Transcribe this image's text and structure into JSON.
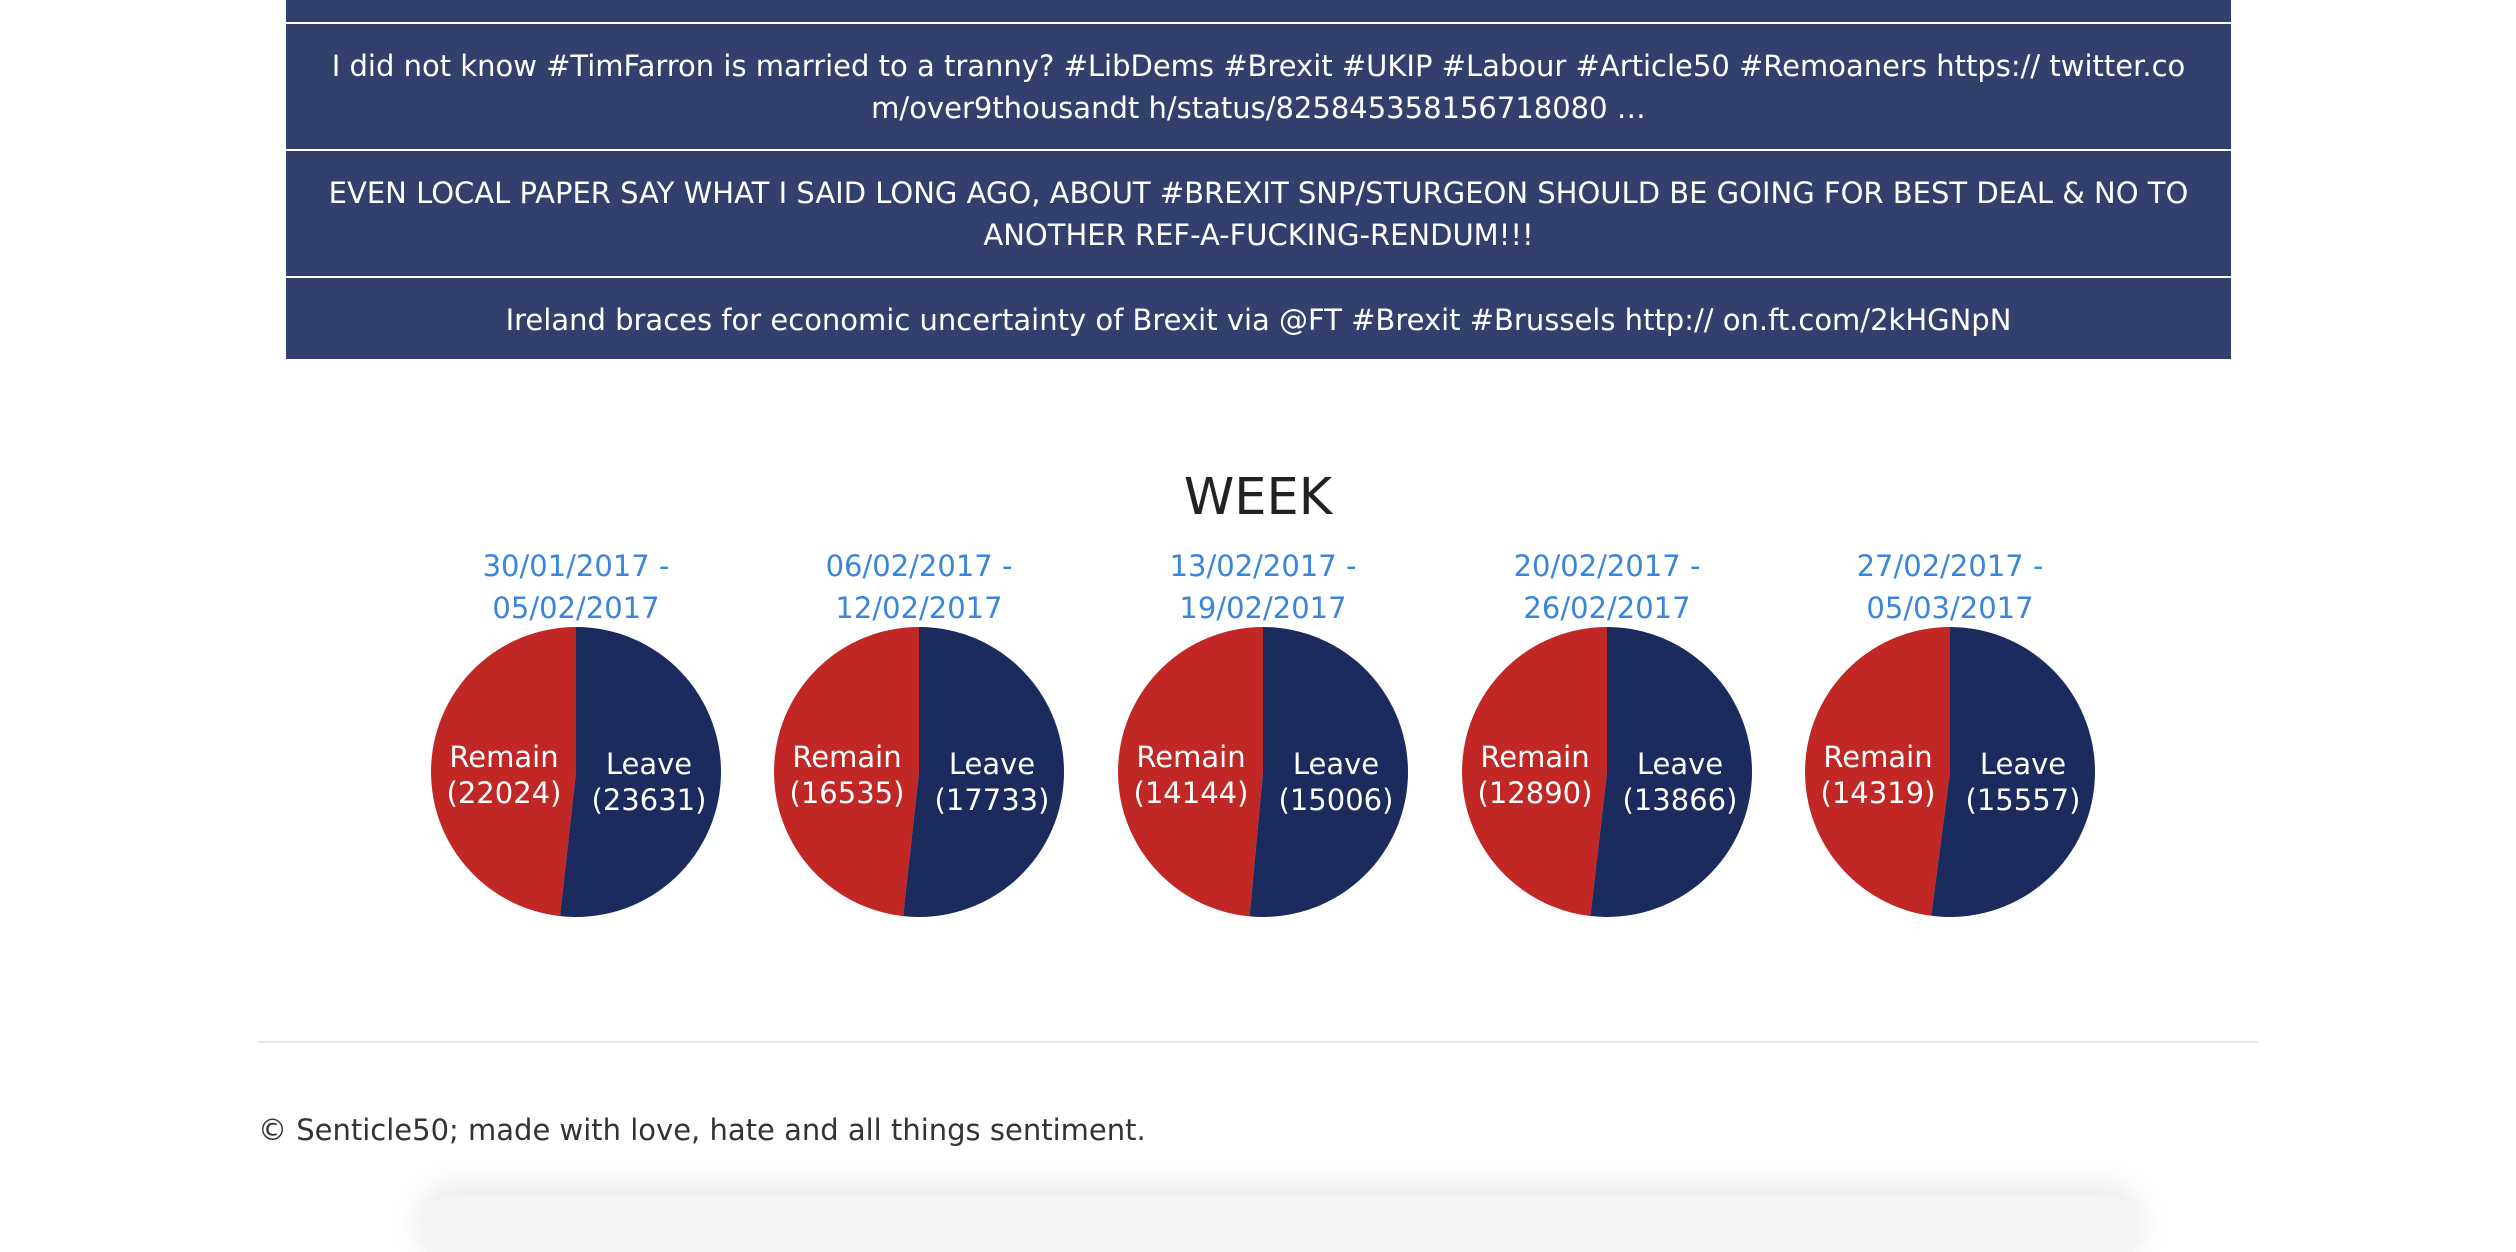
{
  "tweets": [
    {
      "text": "I did not know #TimFarron is married to a tranny? #LibDems #Brexit #UKIP #Labour #Article50 #Remoaners https:// twitter.com/over9thousandt h/status/825845358156718080 …"
    },
    {
      "text": "EVEN LOCAL PAPER SAY WHAT I SAID LONG AGO, ABOUT #BREXIT SNP/STURGEON SHOULD BE GOING FOR BEST DEAL & NO TO ANOTHER REF-A-FUCKING-RENDUM!!!"
    },
    {
      "text": "Ireland braces for economic uncertainty of Brexit via @FT #Brexit #Brussels http:// on.ft.com/2kHGNpN"
    }
  ],
  "section_title": "WEEK",
  "colors": {
    "remain": "#c12725",
    "leave": "#1b2b5e",
    "tweet_bg": "#33406e",
    "link": "#3a85dc"
  },
  "chart_data": [
    {
      "type": "pie",
      "title": "30/01/2017 - 05/02/2017",
      "slices": [
        {
          "label": "Remain",
          "value": 22024,
          "display": "(22024)"
        },
        {
          "label": "Leave",
          "value": 23631,
          "display": "(23631)"
        }
      ]
    },
    {
      "type": "pie",
      "title": "06/02/2017 - 12/02/2017",
      "slices": [
        {
          "label": "Remain",
          "value": 16535,
          "display": "(16535)"
        },
        {
          "label": "Leave",
          "value": 17733,
          "display": "(17733)"
        }
      ]
    },
    {
      "type": "pie",
      "title": "13/02/2017 - 19/02/2017",
      "slices": [
        {
          "label": "Remain",
          "value": 14144,
          "display": "(14144)"
        },
        {
          "label": "Leave",
          "value": 15006,
          "display": "(15006)"
        }
      ]
    },
    {
      "type": "pie",
      "title": "20/02/2017 - 26/02/2017",
      "slices": [
        {
          "label": "Remain",
          "value": 12890,
          "display": "(12890)"
        },
        {
          "label": "Leave",
          "value": 13866,
          "display": "(13866)"
        }
      ]
    },
    {
      "type": "pie",
      "title": "27/02/2017 - 05/03/2017",
      "slices": [
        {
          "label": "Remain",
          "value": 14319,
          "display": "(14319)"
        },
        {
          "label": "Leave",
          "value": 15557,
          "display": "(15557)"
        }
      ]
    }
  ],
  "footer": {
    "text": "© Senticle50; made with love, hate and all things sentiment."
  }
}
